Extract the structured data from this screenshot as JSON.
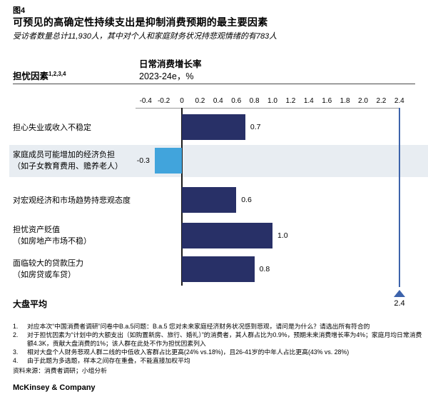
{
  "figure_label": "图4",
  "title": "可预见的高确定性持续支出是抑制消费预期的最主要因素",
  "subtitle": "受访者数量总计11,930人，其中对个人和家庭财务状况持悲观情绪的有783人",
  "header": {
    "left_label": "担忧因素",
    "left_superscript": "1,2,3,4",
    "right_title": "日常消费增长率",
    "right_subtitle": "2023-24e，%"
  },
  "chart_data": {
    "type": "bar",
    "orientation": "horizontal",
    "title": "日常消费增长率 2023-24e, %",
    "xlabel": "日常消费增长率, 2023-24e, %",
    "ylabel": "担忧因素",
    "xlim": [
      -0.4,
      2.4
    ],
    "grid": false,
    "ticks": [
      "-0.4",
      "-0.2",
      "0",
      "0.2",
      "0.4",
      "0.6",
      "0.8",
      "1.0",
      "1.2",
      "1.4",
      "1.6",
      "1.8",
      "2.0",
      "2.2",
      "2.4"
    ],
    "categories": [
      "担心失业或收入不稳定",
      "家庭成员可能增加的经济负担（如子女教育费用、赡养老人）",
      "对宏观经济和市场趋势持悲观态度",
      "担忧资产贬值（如房地产市场不稳）",
      "面临较大的贷款压力（如房贷或车贷）"
    ],
    "values": [
      0.7,
      -0.3,
      0.6,
      1.0,
      0.8
    ],
    "value_labels": [
      "0.7",
      "-0.3",
      "0.6",
      "1.0",
      "0.8"
    ],
    "highlighted_index": 1,
    "benchmark": {
      "label": "大盘平均",
      "value": 2.4,
      "value_label": "2.4"
    },
    "colors": {
      "bar": "#283067",
      "highlight_bar": "#41a4dc",
      "row_highlight_bg": "#e8edf2",
      "benchmark": "#3d63ab"
    }
  },
  "rows": [
    {
      "label_line1": "担心失业或收入不稳定",
      "label_line2": "",
      "value": "0.7"
    },
    {
      "label_line1": "家庭成员可能增加的经济负担",
      "label_line2": "（如子女教育费用、赡养老人）",
      "value": "-0.3"
    },
    {
      "label_line1": "对宏观经济和市场趋势持悲观态度",
      "label_line2": "",
      "value": "0.6"
    },
    {
      "label_line1": "担忧资产贬值",
      "label_line2": "（如房地产市场不稳）",
      "value": "1.0"
    },
    {
      "label_line1": "面临较大的贷款压力",
      "label_line2": "（如房贷或车贷）",
      "value": "0.8"
    }
  ],
  "benchmark_label": "大盘平均",
  "benchmark_value": "2.4",
  "footnotes": [
    {
      "num": "1.",
      "text": "对应本次“中国消费者调研”问卷中B.a.5问题：B.a.5 您对未来家庭经济财务状况感到悲观，请问是为什么？请选出所有符合的"
    },
    {
      "num": "2.",
      "text": "对于担忧因素为“计划中的大额支出（如购置新房、旅行、婚礼）”的消费者，其人群占比为0.9%，预期未来消费增长率为4%；家庭月均日常消费额4.3K，贡献大盘消费的1%；该人群在此处不作为担忧因素列入"
    },
    {
      "num": "3.",
      "text": "相对大盘个人财务悲观人群二线的中低收入客群占比更高(24% vs.18%)，且26-41岁的中年人占比更高(43% vs. 28%)"
    },
    {
      "num": "4.",
      "text": "由于此题为多选题，样本之间存在重叠，不能直接加权平均"
    }
  ],
  "source": "资料来源：消费者调研；小组分析",
  "brand": "McKinsey & Company"
}
